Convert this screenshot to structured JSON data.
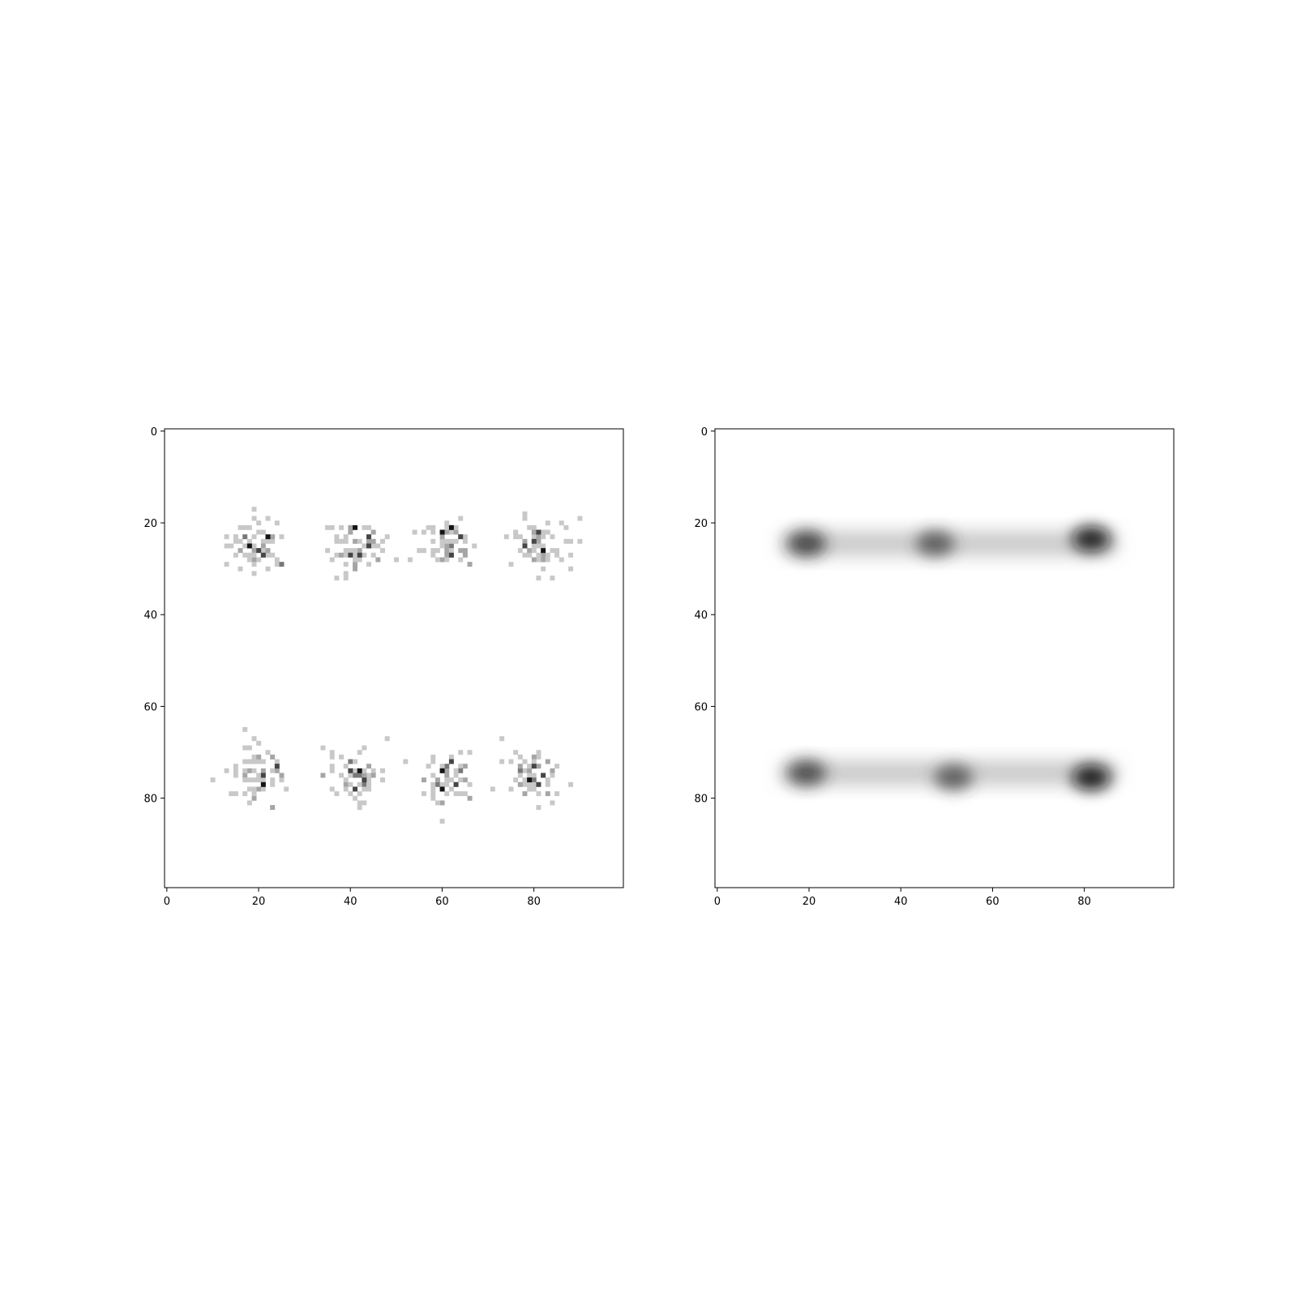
{
  "chart_data": [
    {
      "type": "heatmap",
      "variant": "raw-counts",
      "title": "",
      "xlabel": "",
      "ylabel": "",
      "colormap": "gray_r",
      "grid": false,
      "xlim": [
        0,
        100
      ],
      "ylim": [
        100,
        0
      ],
      "x_ticks": [
        "0",
        "20",
        "40",
        "60",
        "80"
      ],
      "y_ticks": [
        "0",
        "20",
        "40",
        "60",
        "80"
      ],
      "clusters": [
        {
          "cx": 20,
          "cy": 25
        },
        {
          "cx": 41,
          "cy": 25
        },
        {
          "cx": 61,
          "cy": 25
        },
        {
          "cx": 81,
          "cy": 25
        },
        {
          "cx": 20,
          "cy": 75
        },
        {
          "cx": 41,
          "cy": 75
        },
        {
          "cx": 61,
          "cy": 75
        },
        {
          "cx": 80,
          "cy": 75
        }
      ],
      "dark_cells": [
        [
          22,
          23
        ],
        [
          20,
          26
        ],
        [
          21,
          27
        ],
        [
          18,
          25
        ],
        [
          40,
          27
        ],
        [
          42,
          27
        ],
        [
          41,
          21
        ],
        [
          44,
          23
        ],
        [
          44,
          25
        ],
        [
          60,
          22
        ],
        [
          62,
          27
        ],
        [
          64,
          23
        ],
        [
          62,
          21
        ],
        [
          78,
          25
        ],
        [
          81,
          22
        ],
        [
          82,
          26
        ],
        [
          80,
          24
        ],
        [
          21,
          75
        ],
        [
          21,
          77
        ],
        [
          24,
          73
        ],
        [
          40,
          74
        ],
        [
          42,
          74
        ],
        [
          43,
          76
        ],
        [
          41,
          78
        ],
        [
          60,
          74
        ],
        [
          62,
          72
        ],
        [
          63,
          77
        ],
        [
          60,
          78
        ],
        [
          81,
          77
        ],
        [
          80,
          73
        ],
        [
          79,
          76
        ],
        [
          82,
          75
        ]
      ]
    },
    {
      "type": "heatmap",
      "variant": "smoothed-density",
      "title": "",
      "xlabel": "",
      "ylabel": "",
      "colormap": "gray_r",
      "grid": false,
      "xlim": [
        0,
        100
      ],
      "ylim": [
        100,
        0
      ],
      "x_ticks": [
        "0",
        "20",
        "40",
        "60",
        "80"
      ],
      "y_ticks": [
        "0",
        "20",
        "40",
        "60",
        "80"
      ],
      "bands": [
        {
          "x_start": 14,
          "x_end": 88,
          "y": 25
        },
        {
          "x_start": 14,
          "x_end": 88,
          "y": 75
        }
      ],
      "hotspots": [
        {
          "x": 20,
          "y": 25,
          "intensity": 0.75
        },
        {
          "x": 48,
          "y": 25,
          "intensity": 0.6
        },
        {
          "x": 82,
          "y": 24,
          "intensity": 0.95
        },
        {
          "x": 20,
          "y": 75,
          "intensity": 0.7
        },
        {
          "x": 52,
          "y": 76,
          "intensity": 0.6
        },
        {
          "x": 82,
          "y": 76,
          "intensity": 1.0
        }
      ]
    }
  ]
}
